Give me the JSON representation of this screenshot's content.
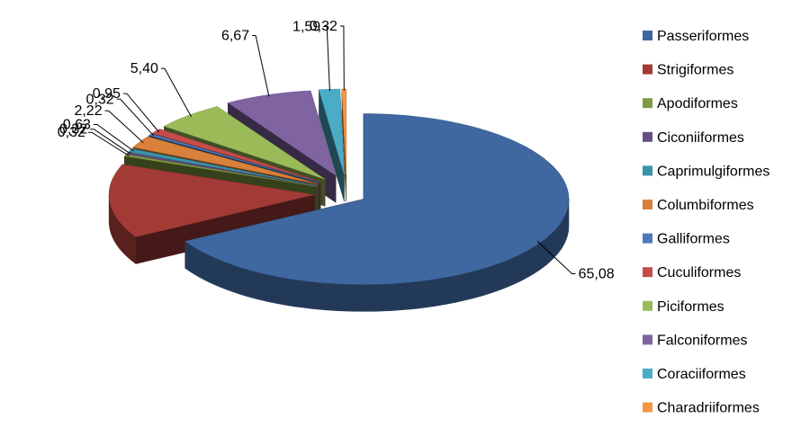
{
  "chart_data": {
    "type": "pie",
    "style": "3d-exploded",
    "title": "",
    "legend_position": "right",
    "slices": [
      {
        "name": "Passeriformes",
        "value": 65.08,
        "label": "65,08",
        "color": "#3F67A0"
      },
      {
        "name": "Strigiformes",
        "value": 13.63,
        "label": "",
        "color": "#A23B36"
      },
      {
        "name": "Apodiformes",
        "value": 0.32,
        "label": "0,32",
        "color": "#7F9A41"
      },
      {
        "name": "Ciconiiformes",
        "value": 0.32,
        "label": "0,32",
        "color": "#654D85"
      },
      {
        "name": "Caprimulgiformes",
        "value": 0.63,
        "label": "0,63",
        "color": "#3A93A9"
      },
      {
        "name": "Columbiformes",
        "value": 2.22,
        "label": "2,22",
        "color": "#D9803A"
      },
      {
        "name": "Galliformes",
        "value": 0.32,
        "label": "0,32",
        "color": "#4D7AB7"
      },
      {
        "name": "Cuculiformes",
        "value": 0.95,
        "label": "0,95",
        "color": "#C44D4A"
      },
      {
        "name": "Piciformes",
        "value": 5.4,
        "label": "5,40",
        "color": "#9BBB59"
      },
      {
        "name": "Falconiformes",
        "value": 6.67,
        "label": "6,67",
        "color": "#8064A2"
      },
      {
        "name": "Coraciiformes",
        "value": 1.59,
        "label": "1,59",
        "color": "#4BACC6"
      },
      {
        "name": "Charadriiformes",
        "value": 0.32,
        "label": "0,32",
        "color": "#F79646"
      }
    ]
  }
}
